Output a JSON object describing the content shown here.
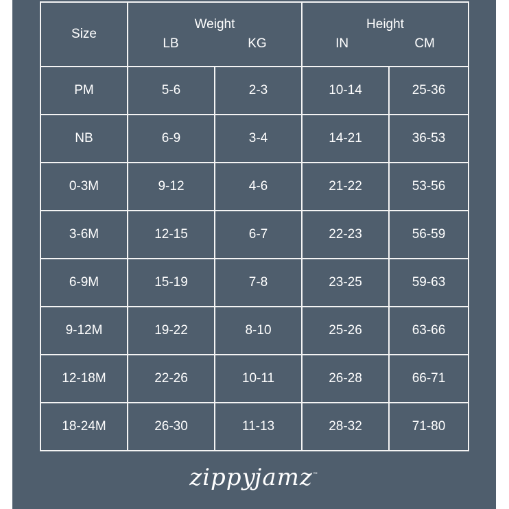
{
  "header": {
    "size": "Size",
    "weight": {
      "label": "Weight",
      "units": [
        "LB",
        "KG"
      ]
    },
    "height": {
      "label": "Height",
      "units": [
        "IN",
        "CM"
      ]
    }
  },
  "rows": [
    [
      "PM",
      "5-6",
      "2-3",
      "10-14",
      "25-36"
    ],
    [
      "NB",
      "6-9",
      "3-4",
      "14-21",
      "36-53"
    ],
    [
      "0-3M",
      "9-12",
      "4-6",
      "21-22",
      "53-56"
    ],
    [
      "3-6M",
      "12-15",
      "6-7",
      "22-23",
      "56-59"
    ],
    [
      "6-9M",
      "15-19",
      "7-8",
      "23-25",
      "59-63"
    ],
    [
      "9-12M",
      "19-22",
      "8-10",
      "25-26",
      "63-66"
    ],
    [
      "12-18M",
      "22-26",
      "10-11",
      "26-28",
      "66-71"
    ],
    [
      "18-24M",
      "26-30",
      "11-13",
      "28-32",
      "71-80"
    ]
  ],
  "logo": "zippyjamz",
  "colors": {
    "panel": "#4f5e6d",
    "lines": "#f4f4f4",
    "text": "#ffffff"
  }
}
